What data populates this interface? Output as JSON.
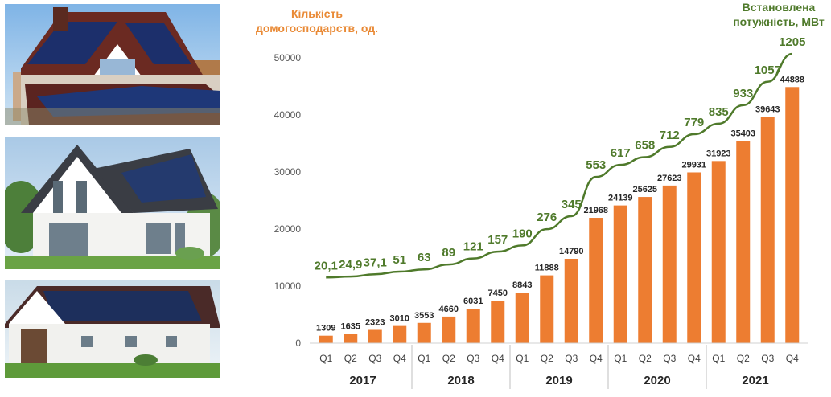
{
  "chart_data": {
    "type": "bar",
    "title": "",
    "left_axis_label_lines": [
      "Кількість",
      "домогосподарств, од."
    ],
    "right_axis_label_lines": [
      "Встановлена",
      "потужність, МВт"
    ],
    "quarters": [
      "Q1",
      "Q2",
      "Q3",
      "Q4",
      "Q1",
      "Q2",
      "Q3",
      "Q4",
      "Q1",
      "Q2",
      "Q3",
      "Q4",
      "Q1",
      "Q2",
      "Q3",
      "Q4",
      "Q1",
      "Q2",
      "Q3",
      "Q4"
    ],
    "years": [
      "2017",
      "2018",
      "2019",
      "2020",
      "2021"
    ],
    "ylim": [
      0,
      50000
    ],
    "y_ticks": [
      0,
      10000,
      20000,
      30000,
      40000,
      50000
    ],
    "series": [
      {
        "name": "Кількість домогосподарств, од.",
        "kind": "bar",
        "color": "#ed7d31",
        "values": [
          1309,
          1635,
          2323,
          3010,
          3553,
          4660,
          6031,
          7450,
          8843,
          11888,
          14790,
          21968,
          24139,
          25625,
          27623,
          29931,
          31923,
          35403,
          39643,
          44888
        ],
        "labels": [
          "1309",
          "1635",
          "2323",
          "3010",
          "3553",
          "4660",
          "6031",
          "7450",
          "8843",
          "11888",
          "14790",
          "21968",
          "24139",
          "25625",
          "27623",
          "29931",
          "31923",
          "35403",
          "39643",
          "44888"
        ]
      },
      {
        "name": "Встановлена потужність, МВт",
        "kind": "line",
        "color": "#4f7a2b",
        "values": [
          20.1,
          24.9,
          37.1,
          51,
          63,
          89,
          121,
          157,
          190,
          276,
          345,
          553,
          617,
          658,
          712,
          779,
          835,
          933,
          1057,
          1205
        ],
        "labels": [
          "20,1",
          "24,9",
          "37,1",
          "51",
          "63",
          "89",
          "121",
          "157",
          "190",
          "276",
          "345",
          "553",
          "617",
          "658",
          "712",
          "779",
          "835",
          "933",
          "1057",
          "1205"
        ]
      }
    ]
  },
  "photos": [
    {
      "name": "house-photo-1"
    },
    {
      "name": "house-photo-2"
    },
    {
      "name": "house-photo-3"
    }
  ]
}
